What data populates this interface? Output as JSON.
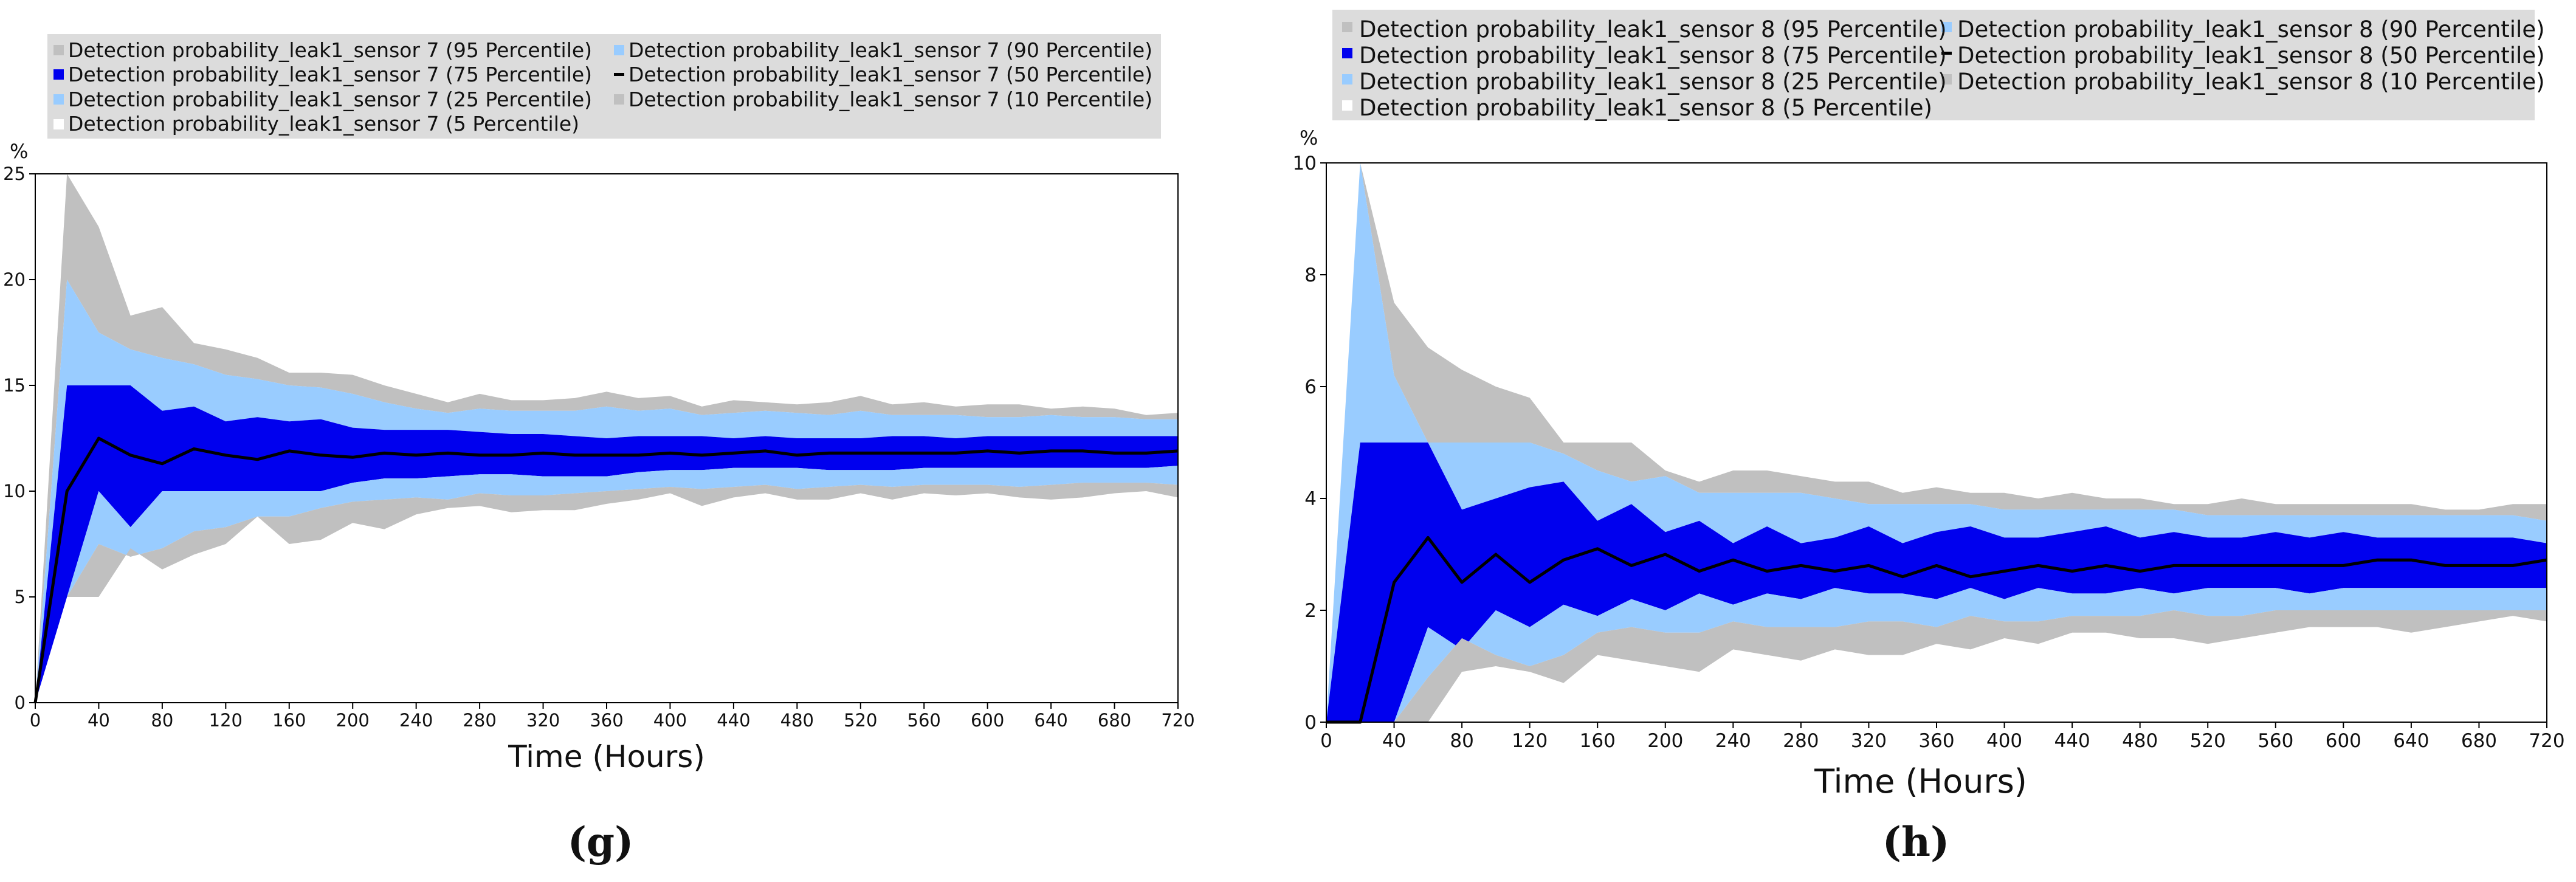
{
  "figure": {
    "panels": [
      {
        "caption": "(g)"
      },
      {
        "caption": "(h)"
      }
    ]
  },
  "colors": {
    "p95": "#c0c0c0",
    "p90": "#99ccff",
    "p75": "#0000ee",
    "p50": "#000000",
    "frame": "#000000",
    "legend_bg": "#dcdcdc"
  },
  "chart_data": [
    {
      "type": "area",
      "title": "",
      "xlabel": "Time (Hours)",
      "ylabel": "%",
      "xlim": [
        0,
        720
      ],
      "ylim": [
        0,
        25
      ],
      "xticks": [
        0,
        40,
        80,
        120,
        160,
        200,
        240,
        280,
        320,
        360,
        400,
        440,
        480,
        520,
        560,
        600,
        640,
        680,
        720
      ],
      "yticks": [
        0,
        5,
        10,
        15,
        20,
        25
      ],
      "x": [
        0,
        20,
        40,
        60,
        80,
        100,
        120,
        140,
        160,
        180,
        200,
        220,
        240,
        260,
        280,
        300,
        320,
        340,
        360,
        380,
        400,
        420,
        440,
        460,
        480,
        500,
        520,
        540,
        560,
        580,
        600,
        620,
        640,
        660,
        680,
        700,
        720
      ],
      "legend": {
        "p95": "Detection probability_leak1_sensor 7 (95 Percentile)",
        "p90": "Detection probability_leak1_sensor 7 (90 Percentile)",
        "p75": "Detection probability_leak1_sensor 7 (75 Percentile)",
        "p50": "Detection probability_leak1_sensor 7 (50 Percentile)",
        "p25": "Detection probability_leak1_sensor 7 (25 Percentile)",
        "p10": "Detection probability_leak1_sensor 7 (10 Percentile)",
        "p5": "Detection probability_leak1_sensor 7 (5 Percentile)"
      },
      "series": [
        {
          "name": "95 Percentile",
          "values": [
            0,
            25,
            22.5,
            18.3,
            18.7,
            17,
            16.7,
            16.3,
            15.6,
            15.6,
            15.5,
            15,
            14.6,
            14.2,
            14.6,
            14.3,
            14.3,
            14.4,
            14.7,
            14.4,
            14.5,
            14,
            14.3,
            14.2,
            14.1,
            14.2,
            14.5,
            14.1,
            14.2,
            14.0,
            14.1,
            14.1,
            13.9,
            14.0,
            13.9,
            13.6,
            13.7
          ]
        },
        {
          "name": "90 Percentile",
          "values": [
            0,
            20,
            17.5,
            16.7,
            16.3,
            16,
            15.5,
            15.3,
            15,
            14.9,
            14.6,
            14.2,
            13.9,
            13.7,
            13.9,
            13.8,
            13.8,
            13.8,
            14.0,
            13.8,
            13.9,
            13.6,
            13.7,
            13.8,
            13.7,
            13.6,
            13.8,
            13.6,
            13.6,
            13.6,
            13.5,
            13.5,
            13.6,
            13.5,
            13.5,
            13.4,
            13.4
          ]
        },
        {
          "name": "75 Percentile",
          "values": [
            0,
            15,
            15,
            15,
            13.8,
            14,
            13.3,
            13.5,
            13.3,
            13.4,
            13,
            12.9,
            12.9,
            12.9,
            12.8,
            12.7,
            12.7,
            12.6,
            12.5,
            12.6,
            12.6,
            12.6,
            12.5,
            12.6,
            12.5,
            12.5,
            12.5,
            12.6,
            12.6,
            12.5,
            12.6,
            12.6,
            12.6,
            12.6,
            12.6,
            12.6,
            12.6
          ]
        },
        {
          "name": "50 Percentile",
          "values": [
            0,
            10,
            12.5,
            11.7,
            11.3,
            12,
            11.7,
            11.5,
            11.9,
            11.7,
            11.6,
            11.8,
            11.7,
            11.8,
            11.7,
            11.7,
            11.8,
            11.7,
            11.7,
            11.7,
            11.8,
            11.7,
            11.8,
            11.9,
            11.7,
            11.8,
            11.8,
            11.8,
            11.8,
            11.8,
            11.9,
            11.8,
            11.9,
            11.9,
            11.8,
            11.8,
            11.9
          ]
        },
        {
          "name": "25 Percentile",
          "values": [
            0,
            5,
            10,
            8.3,
            10,
            10,
            10,
            10,
            10,
            10,
            10.4,
            10.6,
            10.6,
            10.7,
            10.8,
            10.8,
            10.7,
            10.7,
            10.7,
            10.9,
            11.0,
            11.0,
            11.1,
            11.1,
            11.1,
            11.0,
            11.0,
            11.0,
            11.1,
            11.1,
            11.1,
            11.1,
            11.1,
            11.1,
            11.1,
            11.1,
            11.2
          ]
        },
        {
          "name": "10 Percentile",
          "values": [
            0,
            5,
            7.5,
            6.9,
            7.3,
            8.1,
            8.3,
            8.8,
            8.8,
            9.2,
            9.5,
            9.6,
            9.7,
            9.6,
            9.9,
            9.8,
            9.8,
            9.9,
            10.0,
            10.1,
            10.2,
            10.1,
            10.2,
            10.3,
            10.1,
            10.2,
            10.3,
            10.2,
            10.3,
            10.3,
            10.3,
            10.2,
            10.3,
            10.4,
            10.4,
            10.4,
            10.3
          ]
        },
        {
          "name": "5 Percentile",
          "values": [
            0,
            5,
            5,
            7.3,
            6.3,
            7,
            7.5,
            8.8,
            7.5,
            7.7,
            8.5,
            8.2,
            8.9,
            9.2,
            9.3,
            9.0,
            9.1,
            9.1,
            9.4,
            9.6,
            9.9,
            9.3,
            9.7,
            9.9,
            9.6,
            9.6,
            9.9,
            9.6,
            9.9,
            9.8,
            9.9,
            9.7,
            9.6,
            9.7,
            9.9,
            10.0,
            9.7
          ]
        }
      ]
    },
    {
      "type": "area",
      "title": "",
      "xlabel": "Time (Hours)",
      "ylabel": "%",
      "xlim": [
        0,
        720
      ],
      "ylim": [
        0,
        10
      ],
      "xticks": [
        0,
        40,
        80,
        120,
        160,
        200,
        240,
        280,
        320,
        360,
        400,
        440,
        480,
        520,
        560,
        600,
        640,
        680,
        720
      ],
      "yticks": [
        0,
        2,
        4,
        6,
        8,
        10
      ],
      "x": [
        0,
        20,
        40,
        60,
        80,
        100,
        120,
        140,
        160,
        180,
        200,
        220,
        240,
        260,
        280,
        300,
        320,
        340,
        360,
        380,
        400,
        420,
        440,
        460,
        480,
        500,
        520,
        540,
        560,
        580,
        600,
        620,
        640,
        660,
        680,
        700,
        720
      ],
      "legend": {
        "p95": "Detection probability_leak1_sensor 8 (95 Percentile)",
        "p90": "Detection probability_leak1_sensor 8 (90 Percentile)",
        "p75": "Detection probability_leak1_sensor 8 (75 Percentile)",
        "p50": "Detection probability_leak1_sensor 8 (50 Percentile)",
        "p25": "Detection probability_leak1_sensor 8 (25 Percentile)",
        "p10": "Detection probability_leak1_sensor 8 (10 Percentile)",
        "p5": "Detection probability_leak1_sensor 8 (5 Percentile)"
      },
      "series": [
        {
          "name": "95 Percentile",
          "values": [
            0,
            10,
            7.5,
            6.7,
            6.3,
            6,
            5.8,
            5,
            5,
            5,
            4.5,
            4.3,
            4.5,
            4.5,
            4.4,
            4.3,
            4.3,
            4.1,
            4.2,
            4.1,
            4.1,
            4.0,
            4.1,
            4.0,
            4.0,
            3.9,
            3.9,
            4.0,
            3.9,
            3.9,
            3.9,
            3.9,
            3.9,
            3.8,
            3.8,
            3.9,
            3.9
          ]
        },
        {
          "name": "90 Percentile",
          "values": [
            0,
            10,
            6.2,
            5,
            5,
            5,
            5,
            4.8,
            4.5,
            4.3,
            4.4,
            4.1,
            4.1,
            4.1,
            4.1,
            4.0,
            3.9,
            3.9,
            3.9,
            3.9,
            3.8,
            3.8,
            3.8,
            3.8,
            3.8,
            3.8,
            3.7,
            3.7,
            3.7,
            3.7,
            3.7,
            3.7,
            3.7,
            3.7,
            3.7,
            3.7,
            3.6
          ]
        },
        {
          "name": "75 Percentile",
          "values": [
            0,
            5,
            5,
            5,
            3.8,
            4,
            4.2,
            4.3,
            3.6,
            3.9,
            3.4,
            3.6,
            3.2,
            3.5,
            3.2,
            3.3,
            3.5,
            3.2,
            3.4,
            3.5,
            3.3,
            3.3,
            3.4,
            3.5,
            3.3,
            3.4,
            3.3,
            3.3,
            3.4,
            3.3,
            3.4,
            3.3,
            3.3,
            3.3,
            3.3,
            3.3,
            3.2
          ]
        },
        {
          "name": "50 Percentile",
          "values": [
            0,
            0,
            2.5,
            3.3,
            2.5,
            3,
            2.5,
            2.9,
            3.1,
            2.8,
            3.0,
            2.7,
            2.9,
            2.7,
            2.8,
            2.7,
            2.8,
            2.6,
            2.8,
            2.6,
            2.7,
            2.8,
            2.7,
            2.8,
            2.7,
            2.8,
            2.8,
            2.8,
            2.8,
            2.8,
            2.8,
            2.9,
            2.9,
            2.8,
            2.8,
            2.8,
            2.9
          ]
        },
        {
          "name": "25 Percentile",
          "values": [
            0,
            0,
            0,
            1.7,
            1.3,
            2,
            1.7,
            2.1,
            1.9,
            2.2,
            2.0,
            2.3,
            2.1,
            2.3,
            2.2,
            2.4,
            2.3,
            2.3,
            2.2,
            2.4,
            2.2,
            2.4,
            2.3,
            2.3,
            2.4,
            2.3,
            2.4,
            2.4,
            2.4,
            2.3,
            2.4,
            2.4,
            2.4,
            2.4,
            2.4,
            2.4,
            2.4
          ]
        },
        {
          "name": "10 Percentile",
          "values": [
            0,
            0,
            0,
            0.8,
            1.5,
            1.2,
            1.0,
            1.2,
            1.6,
            1.7,
            1.6,
            1.6,
            1.8,
            1.7,
            1.7,
            1.7,
            1.8,
            1.8,
            1.7,
            1.9,
            1.8,
            1.8,
            1.9,
            1.9,
            1.9,
            2.0,
            1.9,
            1.9,
            2.0,
            2.0,
            2.0,
            2.0,
            2.0,
            2.0,
            2.0,
            2.0,
            2.0
          ]
        },
        {
          "name": "5 Percentile",
          "values": [
            0,
            0,
            0,
            0,
            0.9,
            1,
            0.9,
            0.7,
            1.2,
            1.1,
            1.0,
            0.9,
            1.3,
            1.2,
            1.1,
            1.3,
            1.2,
            1.2,
            1.4,
            1.3,
            1.5,
            1.4,
            1.6,
            1.6,
            1.5,
            1.5,
            1.4,
            1.5,
            1.6,
            1.7,
            1.7,
            1.7,
            1.6,
            1.7,
            1.8,
            1.9,
            1.8
          ]
        }
      ]
    }
  ]
}
